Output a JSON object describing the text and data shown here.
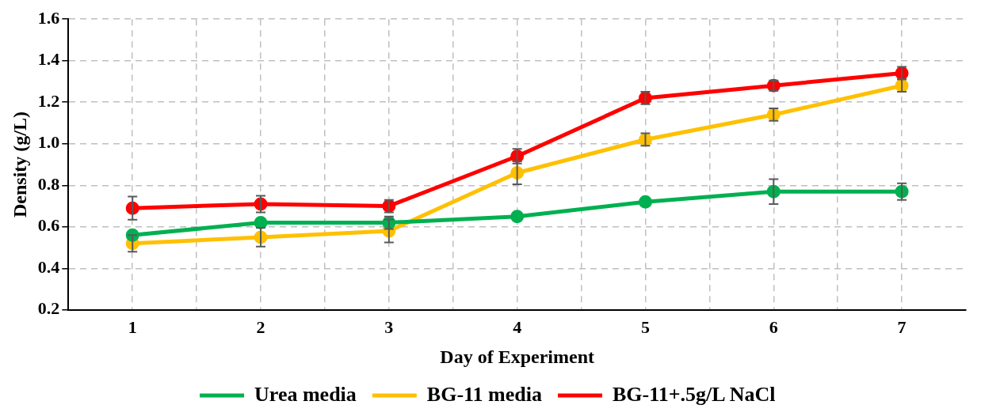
{
  "chart_data": {
    "type": "line",
    "xlabel": "Day of Experiment",
    "ylabel": "Density (g/L)",
    "x": [
      1,
      2,
      3,
      4,
      5,
      6,
      7
    ],
    "xlim": [
      0.5,
      7.5
    ],
    "xticks": [
      1,
      {
        "value": 1.5,
        "label": null
      },
      2,
      {
        "value": 2.5,
        "label": null
      },
      3,
      {
        "value": 3.5,
        "label": null
      },
      4,
      {
        "value": 4.5,
        "label": null
      },
      5,
      {
        "value": 5.5,
        "label": null
      },
      6,
      {
        "value": 6.5,
        "label": null
      },
      7
    ],
    "ylim": [
      0.2,
      1.6
    ],
    "yticks": [
      0.2,
      0.4,
      0.6,
      0.8,
      {
        "value": 1,
        "label": "1.0"
      },
      1.2,
      1.4,
      1.6
    ],
    "series": [
      {
        "name": "Urea media",
        "color": "#00b050",
        "values": [
          0.56,
          0.62,
          0.62,
          0.65,
          0.72,
          0.77,
          0.77
        ],
        "errors": [
          null,
          null,
          0.03,
          null,
          null,
          0.06,
          0.04
        ]
      },
      {
        "name": "BG-11 media",
        "color": "#ffc000",
        "values": [
          0.52,
          0.55,
          0.58,
          0.86,
          1.02,
          1.14,
          1.28
        ],
        "errors": [
          0.04,
          0.045,
          0.055,
          0.055,
          0.03,
          0.03,
          0.03
        ]
      },
      {
        "name": "BG-11+.5g/L NaCl",
        "color": "#ff0000",
        "values": [
          0.69,
          0.71,
          0.7,
          0.94,
          1.22,
          1.28,
          1.34
        ],
        "errors": [
          0.056,
          0.04,
          0.03,
          0.035,
          0.03,
          0.025,
          0.03
        ]
      }
    ],
    "grid": true,
    "legend": "bottom",
    "marker": "circle",
    "line_style": "solid"
  }
}
